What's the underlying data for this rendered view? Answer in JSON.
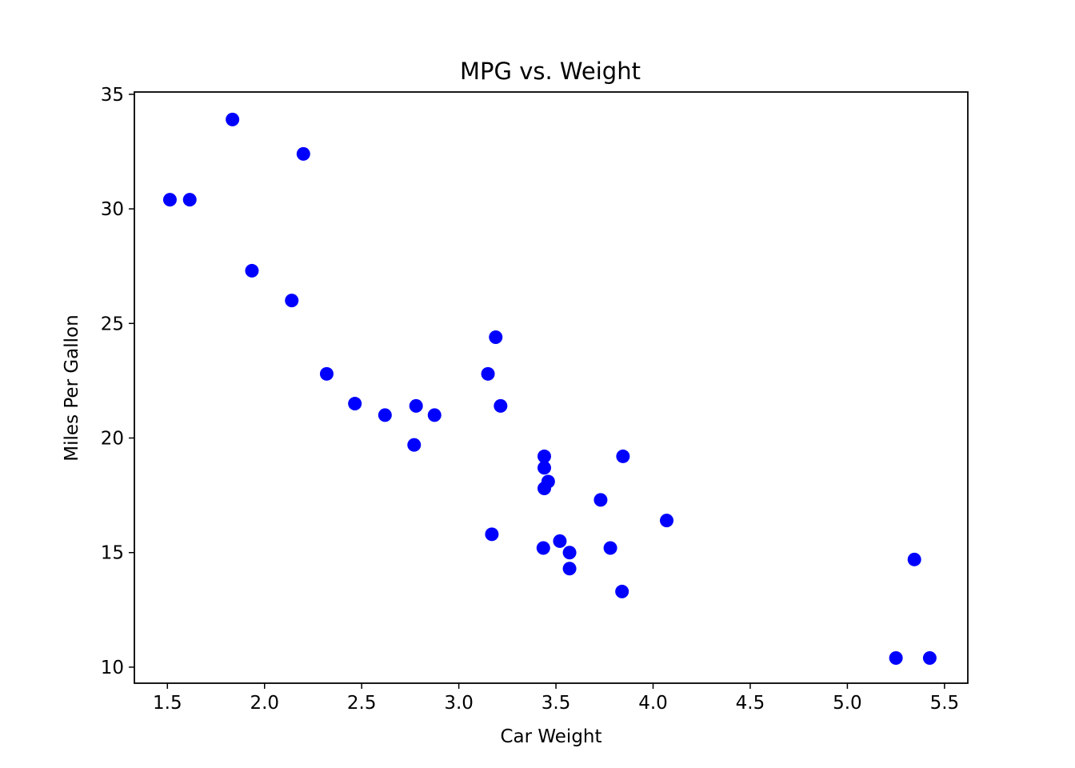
{
  "chart_data": {
    "type": "scatter",
    "title": "MPG vs. Weight",
    "xlabel": "Car Weight",
    "ylabel": "Miles Per Gallon",
    "xlim": [
      1.33,
      5.62
    ],
    "ylim": [
      9.3,
      35.1
    ],
    "xticks": [
      "1.5",
      "2.0",
      "2.5",
      "3.0",
      "3.5",
      "4.0",
      "4.5",
      "5.0",
      "5.5"
    ],
    "yticks": [
      "10",
      "15",
      "20",
      "25",
      "30",
      "35"
    ],
    "grid": false,
    "legend": "none",
    "marker_color": "#0000ff",
    "points": [
      {
        "x": 2.62,
        "y": 21.0
      },
      {
        "x": 2.875,
        "y": 21.0
      },
      {
        "x": 2.32,
        "y": 22.8
      },
      {
        "x": 3.215,
        "y": 21.4
      },
      {
        "x": 3.44,
        "y": 18.7
      },
      {
        "x": 3.46,
        "y": 18.1
      },
      {
        "x": 3.57,
        "y": 14.3
      },
      {
        "x": 3.19,
        "y": 24.4
      },
      {
        "x": 3.15,
        "y": 22.8
      },
      {
        "x": 3.44,
        "y": 19.2
      },
      {
        "x": 3.44,
        "y": 17.8
      },
      {
        "x": 4.07,
        "y": 16.4
      },
      {
        "x": 3.73,
        "y": 17.3
      },
      {
        "x": 3.78,
        "y": 15.2
      },
      {
        "x": 5.25,
        "y": 10.4
      },
      {
        "x": 5.424,
        "y": 10.4
      },
      {
        "x": 5.345,
        "y": 14.7
      },
      {
        "x": 2.2,
        "y": 32.4
      },
      {
        "x": 1.615,
        "y": 30.4
      },
      {
        "x": 1.835,
        "y": 33.9
      },
      {
        "x": 2.465,
        "y": 21.5
      },
      {
        "x": 3.52,
        "y": 15.5
      },
      {
        "x": 3.435,
        "y": 15.2
      },
      {
        "x": 3.84,
        "y": 13.3
      },
      {
        "x": 3.845,
        "y": 19.2
      },
      {
        "x": 1.935,
        "y": 27.3
      },
      {
        "x": 2.14,
        "y": 26.0
      },
      {
        "x": 1.513,
        "y": 30.4
      },
      {
        "x": 3.17,
        "y": 15.8
      },
      {
        "x": 2.77,
        "y": 19.7
      },
      {
        "x": 3.57,
        "y": 15.0
      },
      {
        "x": 2.78,
        "y": 21.4
      }
    ]
  }
}
